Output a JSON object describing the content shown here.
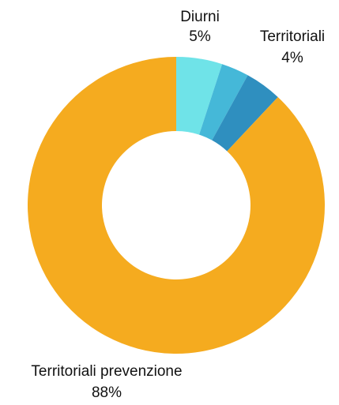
{
  "chart_data": {
    "type": "pie",
    "donut": true,
    "slices": [
      {
        "label": "Diurni",
        "value": 5,
        "value_label": "5%",
        "color": "#6fe3e8",
        "show_label": true
      },
      {
        "label": "",
        "value": 3,
        "value_label": "",
        "color": "#45b8d8",
        "show_label": false
      },
      {
        "label": "Territoriali",
        "value": 4,
        "value_label": "4%",
        "color": "#2f8fbf",
        "show_label": true
      },
      {
        "label": "Territoriali prevenzione",
        "value": 88,
        "value_label": "88%",
        "color": "#f5ab1f",
        "show_label": true
      }
    ],
    "legend": "none"
  }
}
